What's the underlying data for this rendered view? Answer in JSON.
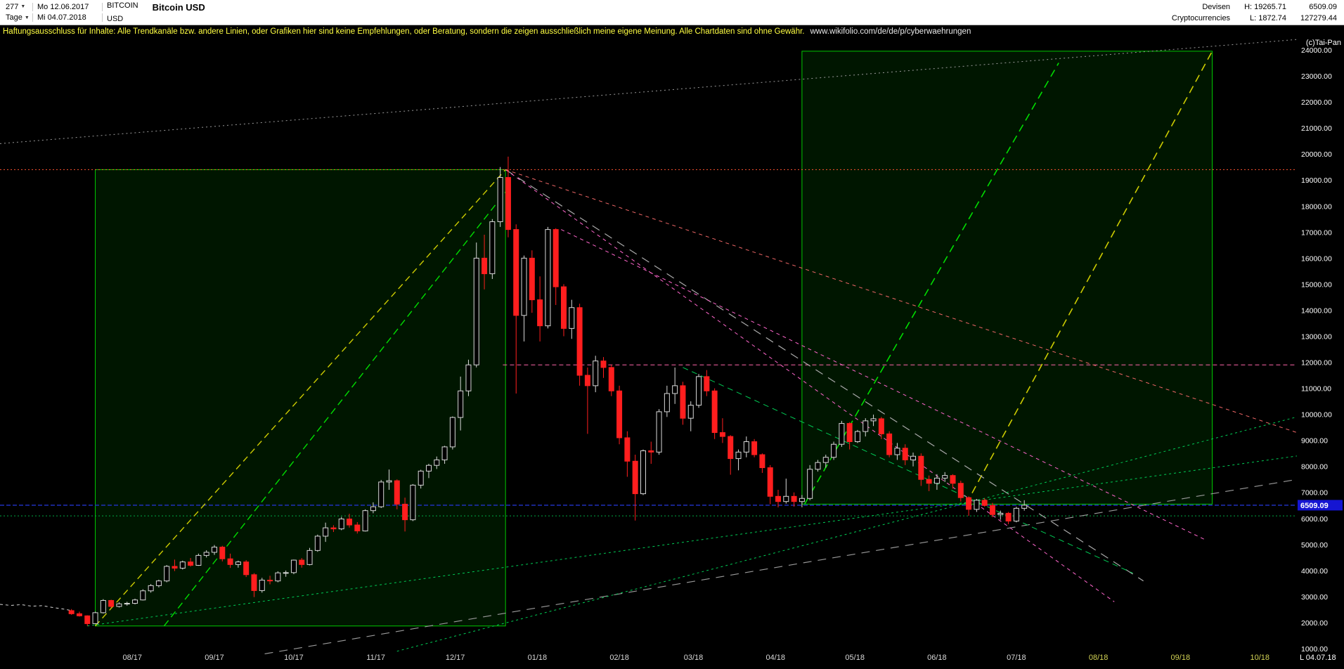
{
  "header": {
    "bars_value": "277",
    "period": "Tage",
    "start_date": "Mo 12.06.2017",
    "end_date": "Mi 04.07.2018",
    "symbol": "BITCOIN",
    "currency": "USD",
    "title": "Bitcoin USD",
    "category1": "Devisen",
    "category2": "Cryptocurrencies",
    "high": "H: 19265.71",
    "low": "L: 1872.74",
    "last": "6509.09",
    "volume": "127279.44"
  },
  "disclaimer": {
    "text": "Haftungsausschluss für Inhalte: Alle Trendkanäle bzw. andere Linien, oder Grafiken hier sind keine Empfehlungen, oder Beratung, sondern die zeigen ausschließlich meine eigene Meinung. Alle Chartdaten sind ohne Gewähr.",
    "url": "www.wikifolio.com/de/de/p/cyberwaehrungen"
  },
  "axis": {
    "watermark": "(c)Tai-Pan",
    "price_tag": "6509.09",
    "tag_color": "#1515d2",
    "corner": "L 04.07.18"
  },
  "chart_data": {
    "type": "candlestick",
    "title": "Bitcoin USD",
    "x_unit": "days since 2017-06-12",
    "x_max": 490,
    "ylim": [
      1000,
      24500
    ],
    "y_ticks": {
      "min": 1000,
      "max": 24000,
      "step": 1000
    },
    "grid": false,
    "legend": false,
    "current_price": 6509.09,
    "months": [
      {
        "label": "08/17",
        "d": 50,
        "f": 0
      },
      {
        "label": "09/17",
        "d": 81,
        "f": 0
      },
      {
        "label": "10/17",
        "d": 111,
        "f": 0
      },
      {
        "label": "11/17",
        "d": 142,
        "f": 0
      },
      {
        "label": "12/17",
        "d": 172,
        "f": 0
      },
      {
        "label": "01/18",
        "d": 203,
        "f": 0
      },
      {
        "label": "02/18",
        "d": 234,
        "f": 0
      },
      {
        "label": "03/18",
        "d": 262,
        "f": 0
      },
      {
        "label": "04/18",
        "d": 293,
        "f": 0
      },
      {
        "label": "05/18",
        "d": 323,
        "f": 0
      },
      {
        "label": "06/18",
        "d": 354,
        "f": 0
      },
      {
        "label": "07/18",
        "d": 384,
        "f": 0
      },
      {
        "label": "08/18",
        "d": 415,
        "f": 1
      },
      {
        "label": "09/18",
        "d": 446,
        "f": 1
      },
      {
        "label": "10/18",
        "d": 476,
        "f": 1
      }
    ],
    "pre_line": [
      [
        0,
        2700
      ],
      [
        4,
        2660
      ],
      [
        8,
        2690
      ],
      [
        12,
        2630
      ],
      [
        16,
        2650
      ],
      [
        20,
        2580
      ],
      [
        24,
        2520
      ],
      [
        27,
        2460
      ]
    ],
    "candles": [
      [
        27,
        2460,
        2520,
        2300,
        2340
      ],
      [
        30,
        2340,
        2420,
        2230,
        2260
      ],
      [
        33,
        2260,
        2280,
        1870,
        1960
      ],
      [
        36,
        1960,
        2420,
        1940,
        2380
      ],
      [
        39,
        2380,
        2900,
        2350,
        2850
      ],
      [
        42,
        2850,
        2880,
        2560,
        2620
      ],
      [
        45,
        2620,
        2780,
        2580,
        2720
      ],
      [
        48,
        2720,
        2800,
        2650,
        2740
      ],
      [
        51,
        2740,
        2920,
        2700,
        2870
      ],
      [
        54,
        2870,
        3280,
        2850,
        3220
      ],
      [
        57,
        3220,
        3480,
        3150,
        3420
      ],
      [
        60,
        3420,
        3650,
        3350,
        3600
      ],
      [
        63,
        3600,
        4210,
        3550,
        4160
      ],
      [
        66,
        4160,
        4420,
        3980,
        4090
      ],
      [
        69,
        4090,
        4380,
        4040,
        4330
      ],
      [
        72,
        4330,
        4480,
        4150,
        4200
      ],
      [
        75,
        4200,
        4650,
        4180,
        4580
      ],
      [
        78,
        4580,
        4780,
        4500,
        4700
      ],
      [
        81,
        4700,
        4980,
        4600,
        4900
      ],
      [
        84,
        4900,
        4950,
        4350,
        4450
      ],
      [
        87,
        4450,
        4650,
        4100,
        4230
      ],
      [
        90,
        4230,
        4380,
        4110,
        4330
      ],
      [
        93,
        4330,
        4400,
        3750,
        3840
      ],
      [
        96,
        3840,
        3900,
        2980,
        3230
      ],
      [
        99,
        3230,
        3720,
        3150,
        3630
      ],
      [
        102,
        3630,
        3800,
        3470,
        3600
      ],
      [
        105,
        3600,
        3970,
        3550,
        3910
      ],
      [
        108,
        3910,
        4000,
        3760,
        3920
      ],
      [
        111,
        3920,
        4420,
        3860,
        4400
      ],
      [
        114,
        4400,
        4480,
        4110,
        4230
      ],
      [
        117,
        4230,
        4870,
        4200,
        4770
      ],
      [
        120,
        4770,
        5380,
        4720,
        5320
      ],
      [
        123,
        5320,
        5840,
        5100,
        5640
      ],
      [
        126,
        5640,
        5740,
        5480,
        5600
      ],
      [
        129,
        5600,
        6060,
        5550,
        5980
      ],
      [
        132,
        5980,
        6180,
        5650,
        5750
      ],
      [
        135,
        5750,
        5860,
        5420,
        5520
      ],
      [
        138,
        5520,
        6350,
        5500,
        6300
      ],
      [
        141,
        6300,
        6620,
        6200,
        6450
      ],
      [
        144,
        6450,
        7480,
        6400,
        7400
      ],
      [
        147,
        7400,
        7880,
        7100,
        7450
      ],
      [
        150,
        7450,
        7500,
        6350,
        6550
      ],
      [
        153,
        6550,
        6800,
        5500,
        5950
      ],
      [
        156,
        5950,
        7320,
        5900,
        7280
      ],
      [
        159,
        7280,
        7870,
        7150,
        7820
      ],
      [
        162,
        7820,
        8100,
        7550,
        8040
      ],
      [
        165,
        8040,
        8380,
        7900,
        8250
      ],
      [
        168,
        8250,
        8790,
        8100,
        8750
      ],
      [
        171,
        8750,
        9920,
        8650,
        9880
      ],
      [
        174,
        9880,
        11450,
        9380,
        10900
      ],
      [
        177,
        10900,
        12100,
        10700,
        11900
      ],
      [
        180,
        11900,
        16600,
        11800,
        16000
      ],
      [
        183,
        16000,
        16900,
        14800,
        15400
      ],
      [
        186,
        15400,
        17500,
        15200,
        17400
      ],
      [
        189,
        17400,
        19500,
        17200,
        19100
      ],
      [
        192,
        19100,
        19900,
        16800,
        17100
      ],
      [
        195,
        17100,
        17300,
        10800,
        13800
      ],
      [
        198,
        13800,
        16100,
        12800,
        16000
      ],
      [
        201,
        16000,
        16300,
        13900,
        14400
      ],
      [
        204,
        14400,
        15300,
        12800,
        13400
      ],
      [
        207,
        13400,
        17200,
        13300,
        17100
      ],
      [
        210,
        17100,
        17150,
        14200,
        14900
      ],
      [
        213,
        14900,
        15000,
        13000,
        13300
      ],
      [
        216,
        13300,
        14400,
        12900,
        14100
      ],
      [
        219,
        14100,
        14250,
        11100,
        11500
      ],
      [
        222,
        11500,
        11800,
        9250,
        11100
      ],
      [
        225,
        11100,
        12250,
        10850,
        12050
      ],
      [
        228,
        12050,
        12200,
        11400,
        11800
      ],
      [
        231,
        11800,
        11900,
        10700,
        10900
      ],
      [
        234,
        10900,
        11100,
        8850,
        9100
      ],
      [
        237,
        9100,
        9350,
        7600,
        8200
      ],
      [
        240,
        8200,
        8450,
        5920,
        6950
      ],
      [
        243,
        6950,
        8650,
        6900,
        8600
      ],
      [
        246,
        8600,
        8950,
        8100,
        8550
      ],
      [
        249,
        8550,
        10200,
        8450,
        10100
      ],
      [
        252,
        10100,
        11100,
        9900,
        10800
      ],
      [
        255,
        10800,
        11800,
        10400,
        11100
      ],
      [
        258,
        11100,
        11250,
        9600,
        9850
      ],
      [
        261,
        9850,
        10500,
        9350,
        10350
      ],
      [
        264,
        10350,
        11550,
        10250,
        11450
      ],
      [
        267,
        11450,
        11700,
        10700,
        10900
      ],
      [
        270,
        10900,
        11000,
        9050,
        9300
      ],
      [
        273,
        9300,
        9850,
        8900,
        9150
      ],
      [
        276,
        9150,
        9200,
        7680,
        8300
      ],
      [
        279,
        8300,
        8650,
        7850,
        8550
      ],
      [
        282,
        8550,
        9150,
        8350,
        8950
      ],
      [
        285,
        8950,
        9050,
        8350,
        8450
      ],
      [
        288,
        8450,
        8500,
        7750,
        7950
      ],
      [
        291,
        7950,
        8050,
        6550,
        6850
      ],
      [
        294,
        6850,
        7100,
        6425,
        6650
      ],
      [
        297,
        6650,
        7530,
        6570,
        6850
      ],
      [
        300,
        6850,
        7000,
        6450,
        6650
      ],
      [
        303,
        6650,
        6900,
        6430,
        6770
      ],
      [
        306,
        6770,
        8050,
        6700,
        7890
      ],
      [
        309,
        7890,
        8250,
        7800,
        8150
      ],
      [
        312,
        8150,
        8450,
        7950,
        8350
      ],
      [
        315,
        8350,
        8950,
        8250,
        8850
      ],
      [
        318,
        8850,
        9750,
        8750,
        9650
      ],
      [
        321,
        9650,
        9700,
        8650,
        8950
      ],
      [
        324,
        8950,
        9400,
        8900,
        9340
      ],
      [
        327,
        9340,
        9850,
        9150,
        9750
      ],
      [
        330,
        9750,
        9990,
        9550,
        9830
      ],
      [
        333,
        9830,
        9900,
        9050,
        9250
      ],
      [
        336,
        9250,
        9350,
        8350,
        8450
      ],
      [
        339,
        8450,
        8900,
        8250,
        8700
      ],
      [
        342,
        8700,
        8850,
        8050,
        8250
      ],
      [
        345,
        8250,
        8530,
        8000,
        8390
      ],
      [
        348,
        8390,
        8500,
        7250,
        7500
      ],
      [
        351,
        7500,
        7650,
        7050,
        7350
      ],
      [
        354,
        7350,
        7700,
        7100,
        7550
      ],
      [
        357,
        7550,
        7780,
        7400,
        7650
      ],
      [
        360,
        7650,
        7700,
        7150,
        7350
      ],
      [
        363,
        7350,
        7450,
        6650,
        6800
      ],
      [
        366,
        6800,
        6850,
        6100,
        6350
      ],
      [
        369,
        6350,
        6750,
        6250,
        6700
      ],
      [
        372,
        6700,
        6780,
        6450,
        6500
      ],
      [
        375,
        6500,
        6600,
        6050,
        6150
      ],
      [
        378,
        6150,
        6300,
        5950,
        6200
      ],
      [
        381,
        6200,
        6250,
        5780,
        5900
      ],
      [
        384,
        5900,
        6450,
        5850,
        6390
      ],
      [
        387,
        6390,
        6700,
        6300,
        6509
      ]
    ],
    "rects": [
      {
        "name": "uptrend-box-2017",
        "d1": 36,
        "p1": 1870,
        "d2": 191,
        "p2": 19400,
        "stroke": "#00c800",
        "fill": "rgba(0,220,0,0.10)"
      },
      {
        "name": "projection-box-2018",
        "d1": 303,
        "p1": 6550,
        "d2": 458,
        "p2": 23950,
        "stroke": "#00c800",
        "fill": "rgba(0,220,0,0.10)"
      }
    ],
    "lines": [
      {
        "name": "resistance-top-red",
        "d1": 0,
        "p1": 19400,
        "d2": 490,
        "p2": 19400,
        "color": "#ff5533",
        "dash": "2,3",
        "w": 1
      },
      {
        "name": "resistance-mid-pink",
        "d1": 190,
        "p1": 11900,
        "d2": 490,
        "p2": 11900,
        "color": "#ff66aa",
        "dash": "6,4",
        "w": 1
      },
      {
        "name": "current-price-line",
        "d1": 0,
        "p1": 6509,
        "d2": 490,
        "p2": 6509,
        "color": "#2233cc",
        "dash": "6,3",
        "w": 1.4
      },
      {
        "name": "support-green-line",
        "d1": 0,
        "p1": 6100,
        "d2": 490,
        "p2": 6100,
        "color": "#00aa44",
        "dash": "2,3",
        "w": 1
      },
      {
        "name": "trend-2017-yellow",
        "d1": 36,
        "p1": 1870,
        "d2": 191,
        "p2": 19400,
        "color": "#cccc00",
        "dash": "9,6",
        "w": 1.4
      },
      {
        "name": "trend-2017-green",
        "d1": 62,
        "p1": 1870,
        "d2": 193,
        "p2": 18800,
        "color": "#00dd00",
        "dash": "10,6",
        "w": 1.4
      },
      {
        "name": "projection-green-steep",
        "d1": 304,
        "p1": 6550,
        "d2": 400,
        "p2": 23500,
        "color": "#00dd00",
        "dash": "11,7",
        "w": 1.6
      },
      {
        "name": "projection-yellow-steep",
        "d1": 365,
        "p1": 6550,
        "d2": 458,
        "p2": 23950,
        "color": "#cccc00",
        "dash": "11,7",
        "w": 1.6
      },
      {
        "name": "gray-channel-top",
        "d1": 0,
        "p1": 20400,
        "d2": 490,
        "p2": 24400,
        "color": "#9a9a9a",
        "dash": "2,4",
        "w": 1
      },
      {
        "name": "gray-downtrend",
        "d1": 191,
        "p1": 19400,
        "d2": 432,
        "p2": 3600,
        "color": "#aaaaaa",
        "dash": "12,9",
        "w": 1.2
      },
      {
        "name": "gray-uptrend-low",
        "d1": 100,
        "p1": 800,
        "d2": 490,
        "p2": 7500,
        "color": "#9a9a9a",
        "dash": "12,9",
        "w": 1.2
      },
      {
        "name": "pink-downtrend-1",
        "d1": 191,
        "p1": 19400,
        "d2": 421,
        "p2": 2800,
        "color": "#ff66cc",
        "dash": "5,5",
        "w": 1
      },
      {
        "name": "pink-downtrend-2",
        "d1": 212,
        "p1": 17100,
        "d2": 455,
        "p2": 5200,
        "color": "#ff66cc",
        "dash": "5,5",
        "w": 1
      },
      {
        "name": "red-downtrend-shallow",
        "d1": 191,
        "p1": 19400,
        "d2": 490,
        "p2": 9300,
        "color": "#ee6666",
        "dash": "5,5",
        "w": 1
      },
      {
        "name": "green-support-rising",
        "d1": 33,
        "p1": 1870,
        "d2": 490,
        "p2": 8400,
        "color": "#00cc55",
        "dash": "3,4",
        "w": 1
      },
      {
        "name": "green-support-rising-2",
        "d1": 150,
        "p1": 900,
        "d2": 490,
        "p2": 9900,
        "color": "#00cc55",
        "dash": "3,4",
        "w": 1
      },
      {
        "name": "green-downtrend",
        "d1": 258,
        "p1": 11800,
        "d2": 428,
        "p2": 3900,
        "color": "#00cc55",
        "dash": "8,6",
        "w": 1
      }
    ]
  }
}
